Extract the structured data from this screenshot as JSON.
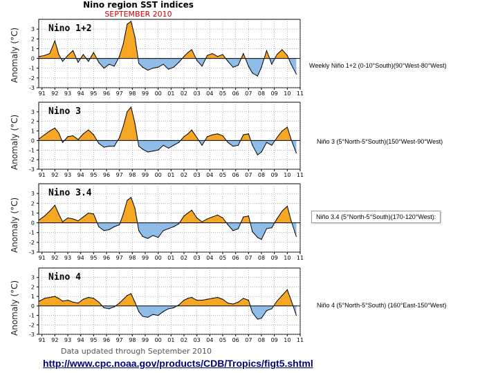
{
  "header": {
    "title": "Nino region SST indices",
    "subtitle": "SEPTEMBER 2010"
  },
  "caption": "Data updated through September 2010",
  "footer": {
    "link_text": "http://www.cpc.noaa.gov/products/CDB/Tropics/figt5.shtml"
  },
  "colors": {
    "positive_fill": "#f5a623",
    "negative_fill": "#8fbde8",
    "line": "#000000"
  },
  "chart_data": [
    {
      "type": "area",
      "panel_label": "Nino 1+2",
      "ylabel": "Anomaly (°C)",
      "region_label": "Weekly Niño 1+2 (0-10°South)(90°West-80°West)",
      "ylim": [
        -3,
        4
      ],
      "yticks": [
        -3,
        -2,
        -1,
        0,
        1,
        2,
        3
      ],
      "x_ticks": [
        "91",
        "92",
        "93",
        "94",
        "95",
        "96",
        "97",
        "98",
        "99",
        "00",
        "01",
        "02",
        "03",
        "04",
        "05",
        "06",
        "07",
        "08",
        "09",
        "10",
        "11"
      ],
      "x": [
        1990.8,
        1991.2,
        1991.6,
        1992.0,
        1992.3,
        1992.6,
        1993.0,
        1993.4,
        1993.8,
        1994.2,
        1994.6,
        1995.0,
        1995.4,
        1995.8,
        1996.2,
        1996.6,
        1997.0,
        1997.3,
        1997.6,
        1997.9,
        1998.2,
        1998.5,
        1998.8,
        1999.2,
        1999.6,
        2000.0,
        2000.4,
        2000.8,
        2001.2,
        2001.6,
        2002.0,
        2002.3,
        2002.6,
        2003.0,
        2003.4,
        2003.8,
        2004.2,
        2004.6,
        2005.0,
        2005.4,
        2005.8,
        2006.2,
        2006.6,
        2007.0,
        2007.3,
        2007.7,
        2008.0,
        2008.4,
        2008.8,
        2009.2,
        2009.6,
        2010.0,
        2010.3,
        2010.7
      ],
      "values": [
        0.2,
        0.3,
        0.5,
        1.8,
        0.4,
        -0.3,
        0.3,
        0.8,
        -0.4,
        0.4,
        -0.3,
        0.6,
        -0.4,
        -1.0,
        -0.6,
        -0.8,
        0.2,
        1.5,
        3.5,
        3.8,
        2.2,
        -0.5,
        -0.9,
        -1.2,
        -1.0,
        -0.9,
        -0.6,
        -1.1,
        -0.9,
        -0.4,
        0.2,
        0.6,
        0.9,
        -0.2,
        -0.8,
        0.3,
        0.5,
        0.2,
        0.4,
        -0.3,
        -0.9,
        -0.7,
        0.5,
        -0.8,
        -1.5,
        -1.8,
        -0.9,
        0.8,
        -0.6,
        0.4,
        0.9,
        0.3,
        -0.6,
        -1.6
      ]
    },
    {
      "type": "area",
      "panel_label": "Nino 3",
      "ylabel": "Anomaly (°C)",
      "region_label": "Niño 3 (5°North-5°South)(150°West-90°West)",
      "ylim": [
        -3,
        4
      ],
      "yticks": [
        -3,
        -2,
        -1,
        0,
        1,
        2,
        3
      ],
      "x_ticks": [
        "91",
        "92",
        "93",
        "94",
        "95",
        "96",
        "97",
        "98",
        "99",
        "00",
        "01",
        "02",
        "03",
        "04",
        "05",
        "06",
        "07",
        "08",
        "09",
        "10",
        "11"
      ],
      "x": [
        1990.8,
        1991.2,
        1991.6,
        1992.0,
        1992.3,
        1992.6,
        1993.0,
        1993.4,
        1993.8,
        1994.2,
        1994.6,
        1995.0,
        1995.4,
        1995.8,
        1996.2,
        1996.6,
        1997.0,
        1997.3,
        1997.6,
        1997.9,
        1998.2,
        1998.5,
        1998.8,
        1999.2,
        1999.6,
        2000.0,
        2000.4,
        2000.8,
        2001.2,
        2001.6,
        2002.0,
        2002.3,
        2002.6,
        2003.0,
        2003.4,
        2003.8,
        2004.2,
        2004.6,
        2005.0,
        2005.4,
        2005.8,
        2006.2,
        2006.6,
        2007.0,
        2007.3,
        2007.7,
        2008.0,
        2008.4,
        2008.8,
        2009.2,
        2009.6,
        2010.0,
        2010.3,
        2010.7
      ],
      "values": [
        0.2,
        0.6,
        1.0,
        1.3,
        0.8,
        -0.2,
        0.4,
        0.5,
        0.1,
        0.7,
        1.1,
        0.6,
        -0.3,
        -0.7,
        -0.6,
        -0.6,
        0.3,
        1.5,
        3.0,
        3.5,
        1.8,
        -0.6,
        -0.9,
        -1.2,
        -1.1,
        -1.0,
        -0.5,
        -0.8,
        -0.5,
        -0.2,
        0.4,
        0.7,
        1.1,
        0.3,
        -0.5,
        0.4,
        0.6,
        0.7,
        0.5,
        -0.2,
        -0.6,
        -0.5,
        0.6,
        0.7,
        -0.5,
        -1.5,
        -1.2,
        -0.2,
        -0.5,
        0.3,
        1.0,
        1.4,
        0.1,
        -1.3
      ]
    },
    {
      "type": "area",
      "panel_label": "Nino 3.4",
      "ylabel": "Anomaly (°C)",
      "region_label": "Niño 3.4 (5°North-5°South)(170-120°West):",
      "ylim": [
        -3,
        4
      ],
      "yticks": [
        -3,
        -2,
        -1,
        0,
        1,
        2,
        3
      ],
      "x_ticks": [
        "91",
        "92",
        "93",
        "94",
        "95",
        "96",
        "97",
        "98",
        "99",
        "00",
        "01",
        "02",
        "03",
        "04",
        "05",
        "06",
        "07",
        "08",
        "09",
        "10",
        "11"
      ],
      "x": [
        1990.8,
        1991.2,
        1991.6,
        1992.0,
        1992.3,
        1992.6,
        1993.0,
        1993.4,
        1993.8,
        1994.2,
        1994.6,
        1995.0,
        1995.4,
        1995.8,
        1996.2,
        1996.6,
        1997.0,
        1997.3,
        1997.6,
        1997.9,
        1998.2,
        1998.5,
        1998.8,
        1999.2,
        1999.6,
        2000.0,
        2000.4,
        2000.8,
        2001.2,
        2001.6,
        2002.0,
        2002.3,
        2002.6,
        2003.0,
        2003.4,
        2003.8,
        2004.2,
        2004.6,
        2005.0,
        2005.4,
        2005.8,
        2006.2,
        2006.6,
        2007.0,
        2007.3,
        2007.7,
        2008.0,
        2008.4,
        2008.8,
        2009.2,
        2009.6,
        2010.0,
        2010.3,
        2010.7
      ],
      "values": [
        0.3,
        0.7,
        1.2,
        1.8,
        0.9,
        0.1,
        0.5,
        0.4,
        0.2,
        0.6,
        1.0,
        0.9,
        -0.4,
        -0.8,
        -0.7,
        -0.4,
        -0.2,
        0.9,
        2.3,
        2.6,
        1.5,
        -0.8,
        -1.4,
        -1.6,
        -1.3,
        -1.5,
        -0.8,
        -0.6,
        -0.4,
        -0.1,
        0.7,
        1.0,
        1.3,
        0.5,
        0.1,
        0.4,
        0.6,
        0.8,
        0.5,
        -0.2,
        -0.8,
        -0.6,
        0.6,
        0.7,
        -0.9,
        -1.5,
        -1.7,
        -0.6,
        -0.5,
        0.4,
        1.2,
        1.7,
        0.2,
        -1.4
      ]
    },
    {
      "type": "area",
      "panel_label": "Nino 4",
      "ylabel": "Anomaly (°C)",
      "region_label": "Niño 4 (5°North-5°South) (160°East-150°West)",
      "ylim": [
        -3,
        4
      ],
      "yticks": [
        -3,
        -2,
        -1,
        0,
        1,
        2,
        3
      ],
      "x_ticks": [
        "91",
        "92",
        "93",
        "94",
        "95",
        "96",
        "97",
        "98",
        "99",
        "00",
        "01",
        "02",
        "03",
        "04",
        "05",
        "06",
        "07",
        "08",
        "09",
        "10",
        "11"
      ],
      "x": [
        1990.8,
        1991.2,
        1991.6,
        1992.0,
        1992.3,
        1992.6,
        1993.0,
        1993.4,
        1993.8,
        1994.2,
        1994.6,
        1995.0,
        1995.4,
        1995.8,
        1996.2,
        1996.6,
        1997.0,
        1997.3,
        1997.6,
        1997.9,
        1998.2,
        1998.5,
        1998.8,
        1999.2,
        1999.6,
        2000.0,
        2000.4,
        2000.8,
        2001.2,
        2001.6,
        2002.0,
        2002.3,
        2002.6,
        2003.0,
        2003.4,
        2003.8,
        2004.2,
        2004.6,
        2005.0,
        2005.4,
        2005.8,
        2006.2,
        2006.6,
        2007.0,
        2007.3,
        2007.7,
        2008.0,
        2008.4,
        2008.8,
        2009.2,
        2009.6,
        2010.0,
        2010.3,
        2010.7
      ],
      "values": [
        0.5,
        0.8,
        0.9,
        1.0,
        0.8,
        0.5,
        0.6,
        0.4,
        0.3,
        0.7,
        0.9,
        0.8,
        0.4,
        -0.2,
        -0.3,
        -0.1,
        0.3,
        0.7,
        1.1,
        1.3,
        0.4,
        -0.6,
        -1.1,
        -1.2,
        -0.9,
        -1.0,
        -0.6,
        -0.3,
        -0.2,
        0.1,
        0.6,
        0.8,
        0.9,
        0.6,
        0.6,
        0.7,
        0.8,
        0.9,
        0.7,
        0.3,
        0.2,
        0.4,
        0.8,
        0.6,
        -0.7,
        -1.4,
        -1.3,
        -0.5,
        -0.3,
        0.5,
        1.1,
        1.7,
        0.6,
        -1.0
      ]
    }
  ]
}
